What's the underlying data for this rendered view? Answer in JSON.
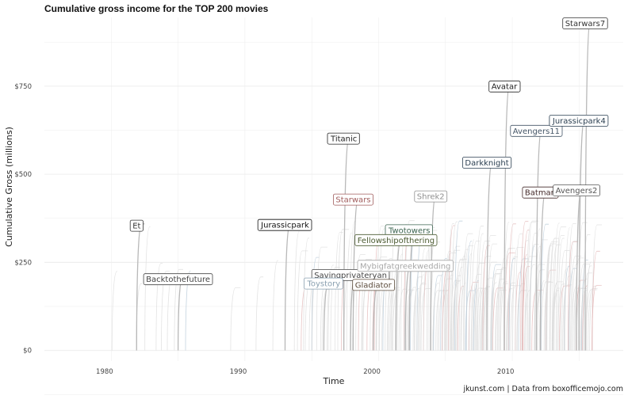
{
  "chart_data": {
    "type": "line",
    "title": "Cumulative gross income for the TOP 200 movies",
    "xlabel": "Time",
    "ylabel": "Cumulative Gross (millions)",
    "caption": "jkunst.com | Data from boxofficemojo.com",
    "xlim": [
      1975.5,
      2018.8
    ],
    "ylim": [
      -30,
      945
    ],
    "x_ticks": [
      {
        "value": 1980,
        "label": "1980"
      },
      {
        "value": 1990,
        "label": "1990"
      },
      {
        "value": 2000,
        "label": "2000"
      },
      {
        "value": 2010,
        "label": "2010"
      }
    ],
    "y_ticks": [
      {
        "value": 0,
        "label": "$0"
      },
      {
        "value": 250,
        "label": "$250"
      },
      {
        "value": 500,
        "label": "$500"
      },
      {
        "value": 750,
        "label": "$750"
      }
    ],
    "grid": true,
    "legend": "none",
    "colors": {
      "line": "#b8b8b8",
      "line_faint": "#d9d9d9",
      "grid": "#ececec"
    },
    "labeled_series": [
      {
        "name": "Et",
        "release": 1982.4,
        "peak": 359,
        "label_y": 354,
        "color": "#333333"
      },
      {
        "name": "Backtothefuture",
        "release": 1985.5,
        "peak": 211,
        "label_y": 202,
        "color": "#444444"
      },
      {
        "name": "Jurassicpark",
        "release": 1993.5,
        "peak": 357,
        "label_y": 356,
        "color": "#111111"
      },
      {
        "name": "Titanic",
        "release": 1997.9,
        "peak": 601,
        "label_y": 601,
        "color": "#222222"
      },
      {
        "name": "Starwars",
        "release": 1998.6,
        "peak": 430,
        "label_y": 428,
        "color": "#a05c5c"
      },
      {
        "name": "Savingprivateryan",
        "release": 1998.4,
        "peak": 216,
        "label_y": 214,
        "color": "#444444"
      },
      {
        "name": "Toystory",
        "release": 1996.4,
        "peak": 192,
        "label_y": 190,
        "color": "#8aa0b0"
      },
      {
        "name": "Gladiator",
        "release": 2000.1,
        "peak": 187,
        "label_y": 186,
        "color": "#5a4a3a"
      },
      {
        "name": "Twotowers",
        "release": 2002.8,
        "peak": 342,
        "label_y": 341,
        "color": "#3c6450"
      },
      {
        "name": "Fellowshipofthering",
        "release": 2001.8,
        "peak": 313,
        "label_y": 313,
        "color": "#4a5a30"
      },
      {
        "name": "Mybigfatgreekwedding",
        "release": 2002.5,
        "peak": 241,
        "label_y": 240,
        "color": "#a8a8a8"
      },
      {
        "name": "Shrek2",
        "release": 2004.4,
        "peak": 441,
        "label_y": 437,
        "color": "#909090"
      },
      {
        "name": "Darkknight",
        "release": 2008.6,
        "peak": 533,
        "label_y": 533,
        "color": "#2a3e50"
      },
      {
        "name": "Avatar",
        "release": 2009.9,
        "peak": 749,
        "label_y": 749,
        "color": "#222222"
      },
      {
        "name": "Avengers11",
        "release": 2012.3,
        "peak": 623,
        "label_y": 623,
        "color": "#445566"
      },
      {
        "name": "Batman",
        "release": 2012.6,
        "peak": 448,
        "label_y": 448,
        "color": "#442a2a"
      },
      {
        "name": "Jurassicpark4",
        "release": 2015.5,
        "peak": 652,
        "label_y": 652,
        "color": "#2a3e50"
      },
      {
        "name": "Avengers2",
        "release": 2015.3,
        "peak": 459,
        "label_y": 454,
        "color": "#555555"
      },
      {
        "name": "Starwars7",
        "release": 2015.95,
        "peak": 936,
        "label_y": 928,
        "color": "#333333"
      }
    ]
  }
}
